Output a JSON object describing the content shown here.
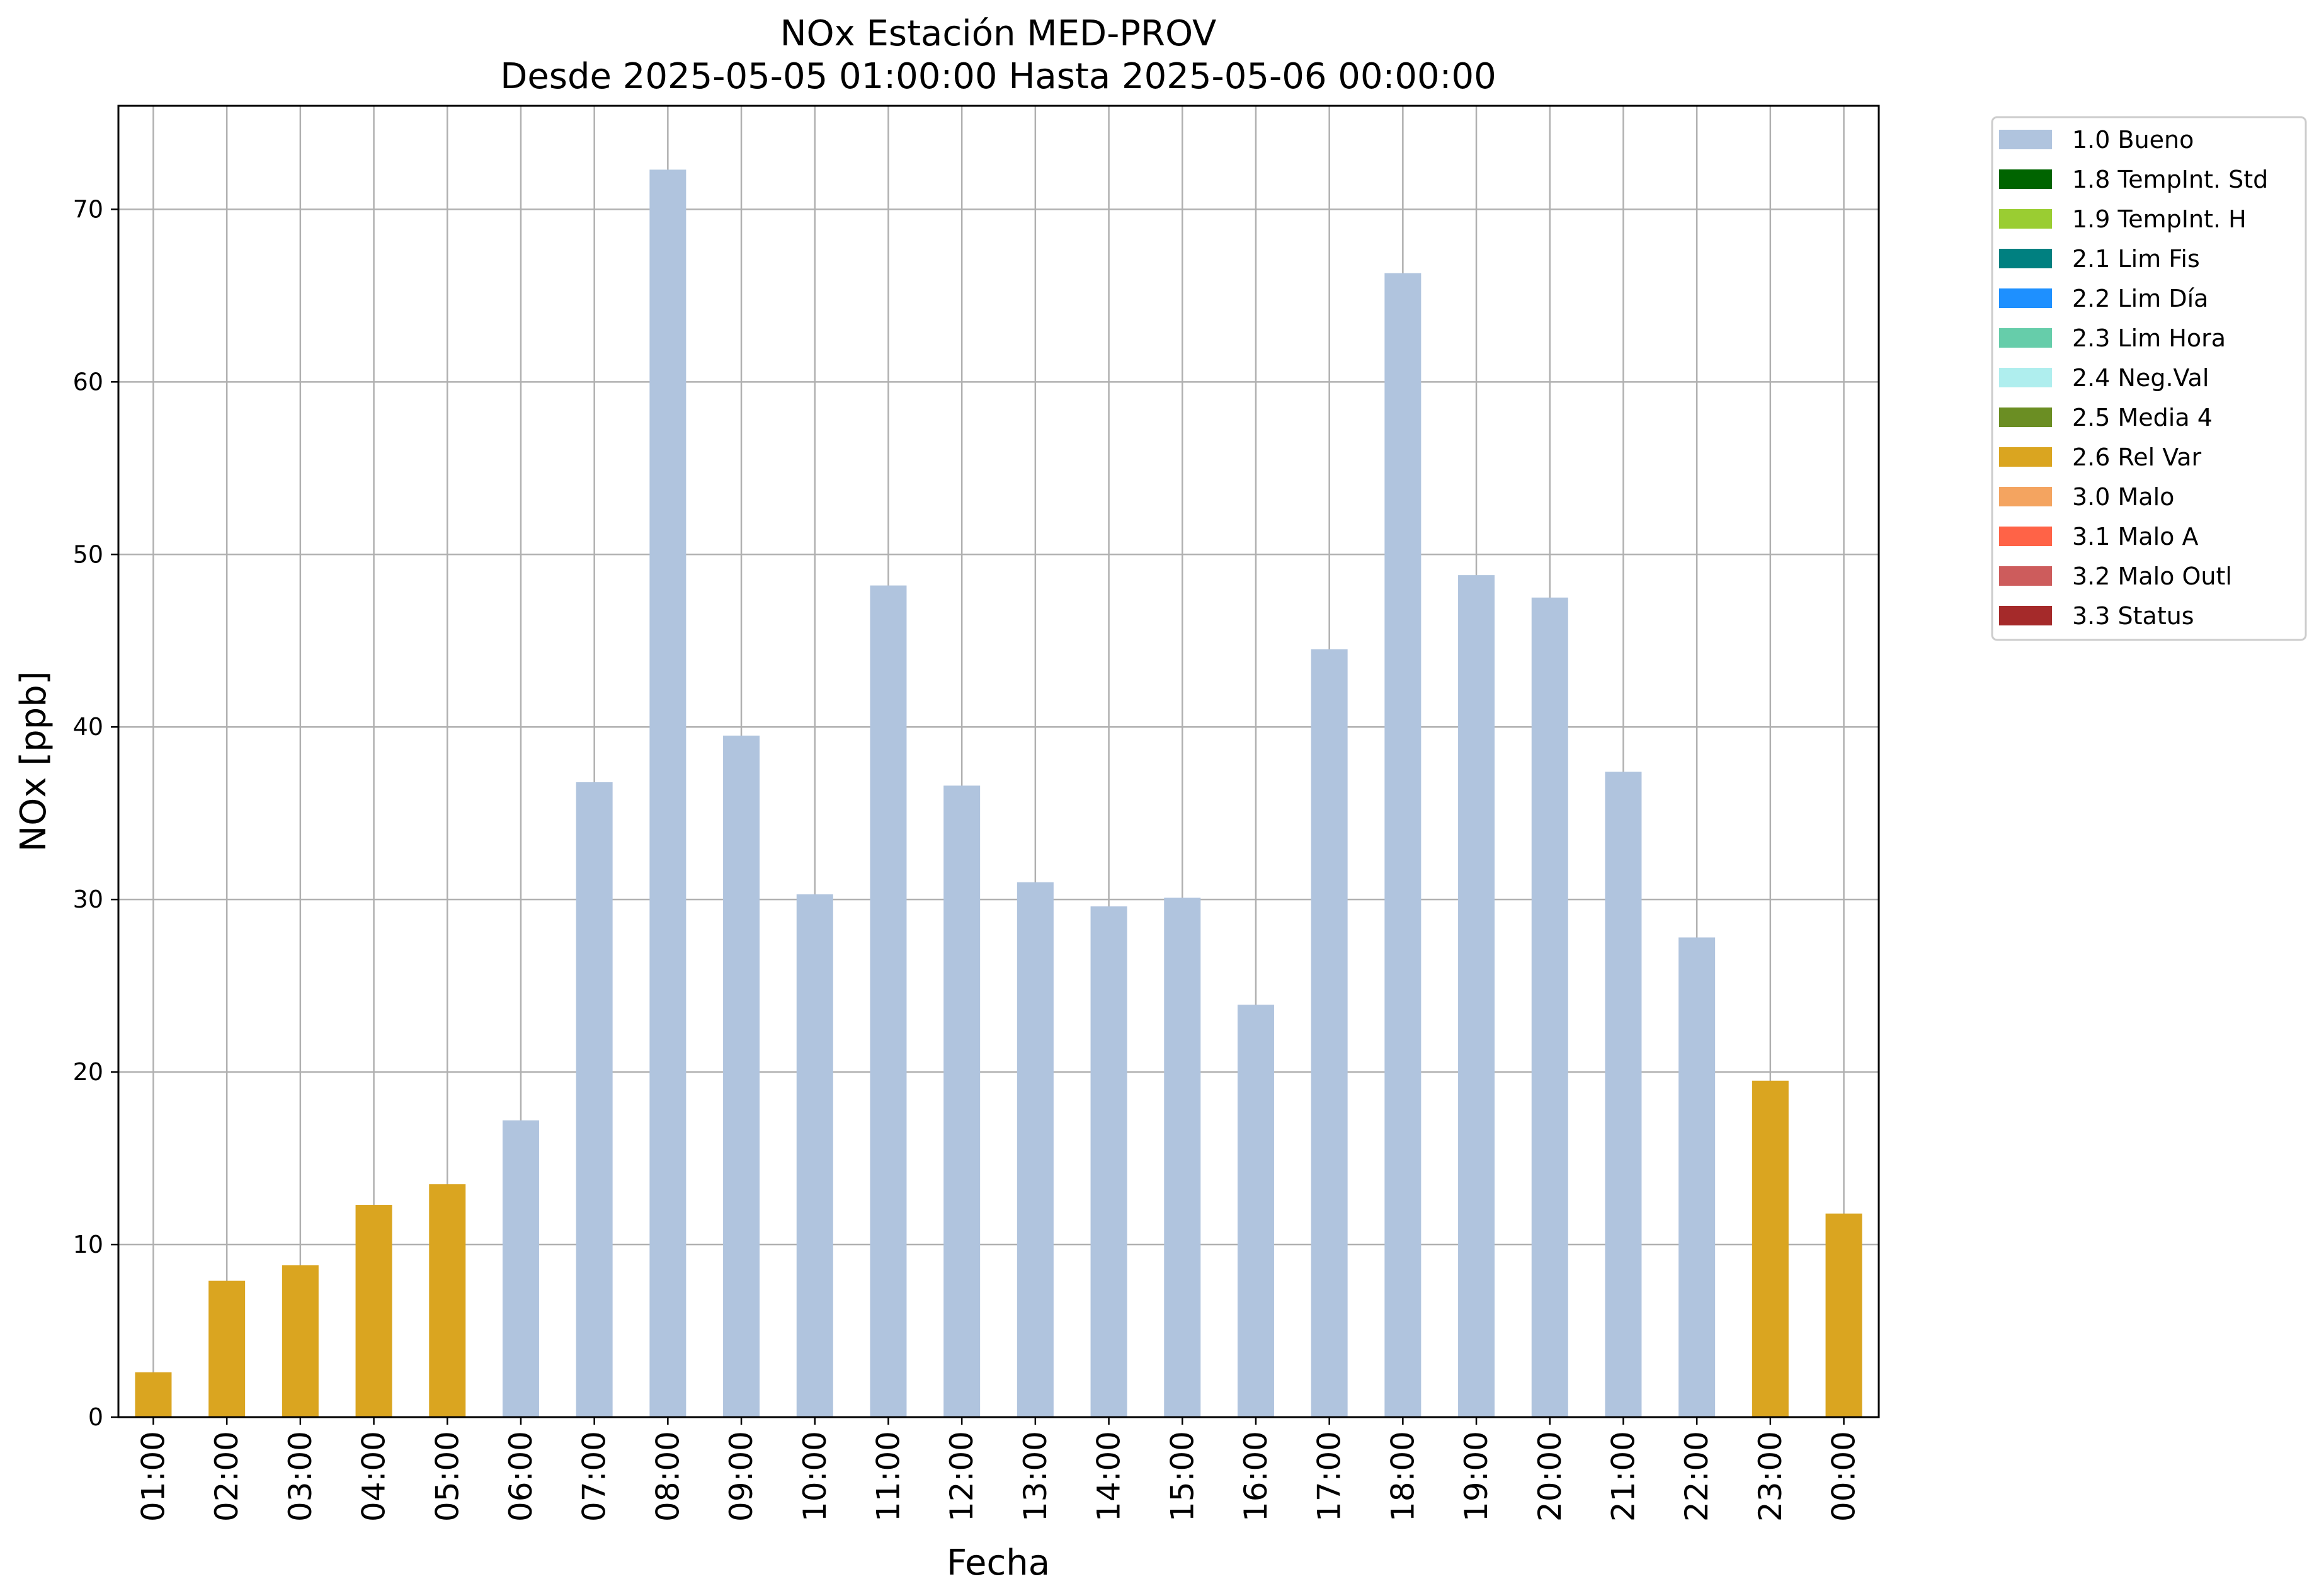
{
  "chart_data": {
    "type": "bar",
    "title": "NOx Estación MED-PROV",
    "subtitle": "Desde 2025-05-05 01:00:00 Hasta 2025-05-06 00:00:00",
    "xlabel": "Fecha",
    "ylabel": "NOx [ppb]",
    "ylim": [
      0,
      76
    ],
    "yticks": [
      0,
      10,
      20,
      30,
      40,
      50,
      60,
      70
    ],
    "grid": true,
    "legend_position": "outside right, top",
    "categories": [
      "01:00",
      "02:00",
      "03:00",
      "04:00",
      "05:00",
      "06:00",
      "07:00",
      "08:00",
      "09:00",
      "10:00",
      "11:00",
      "12:00",
      "13:00",
      "14:00",
      "15:00",
      "16:00",
      "17:00",
      "18:00",
      "19:00",
      "20:00",
      "21:00",
      "22:00",
      "23:00",
      "00:00"
    ],
    "values": [
      2.6,
      7.9,
      8.8,
      12.3,
      13.5,
      17.2,
      36.8,
      72.3,
      39.5,
      30.3,
      48.2,
      36.6,
      31.0,
      29.6,
      30.1,
      23.9,
      44.5,
      66.3,
      48.8,
      47.5,
      37.4,
      27.8,
      19.5,
      11.8
    ],
    "flags": [
      "2.6 Rel Var",
      "2.6 Rel Var",
      "2.6 Rel Var",
      "2.6 Rel Var",
      "2.6 Rel Var",
      "1.0 Bueno",
      "1.0 Bueno",
      "1.0 Bueno",
      "1.0 Bueno",
      "1.0 Bueno",
      "1.0 Bueno",
      "1.0 Bueno",
      "1.0 Bueno",
      "1.0 Bueno",
      "1.0 Bueno",
      "1.0 Bueno",
      "1.0 Bueno",
      "1.0 Bueno",
      "1.0 Bueno",
      "1.0 Bueno",
      "1.0 Bueno",
      "1.0 Bueno",
      "2.6 Rel Var",
      "2.6 Rel Var"
    ],
    "legend": [
      {
        "label": "1.0 Bueno",
        "color": "#b0c4de"
      },
      {
        "label": "1.8 TempInt. Std",
        "color": "#006400"
      },
      {
        "label": "1.9 TempInt. H",
        "color": "#9acd32"
      },
      {
        "label": "2.1 Lim Fis",
        "color": "#008080"
      },
      {
        "label": "2.2 Lim Día",
        "color": "#1e90ff"
      },
      {
        "label": "2.3 Lim Hora",
        "color": "#66cdaa"
      },
      {
        "label": "2.4 Neg.Val",
        "color": "#afeeee"
      },
      {
        "label": "2.5 Media 4",
        "color": "#6b8e23"
      },
      {
        "label": "2.6 Rel Var",
        "color": "#daa520"
      },
      {
        "label": "3.0 Malo",
        "color": "#f4a460"
      },
      {
        "label": "3.1 Malo A",
        "color": "#ff6347"
      },
      {
        "label": "3.2 Malo Outl",
        "color": "#cd5c5c"
      },
      {
        "label": "3.3 Status",
        "color": "#a52a2a"
      }
    ]
  }
}
